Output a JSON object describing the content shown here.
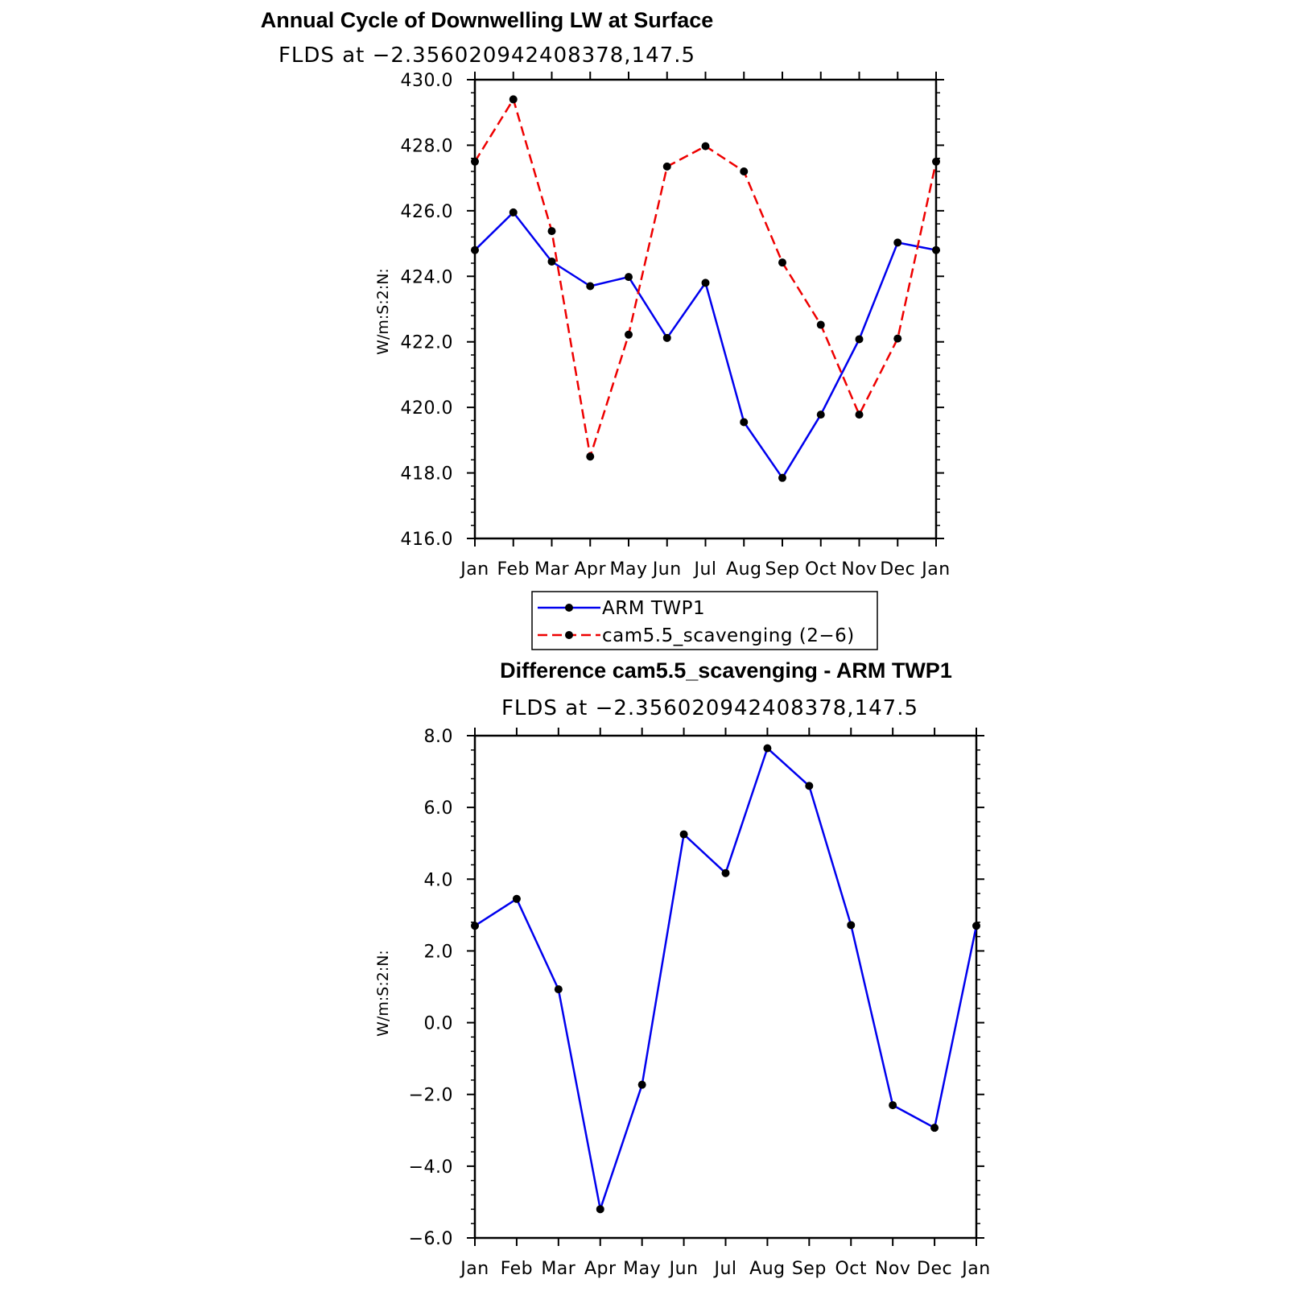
{
  "chart_data": [
    {
      "type": "line",
      "title": "Annual Cycle of Downwelling LW at Surface",
      "subtitle": "FLDS at −2.356020942408378,147.5",
      "xlabel": "",
      "ylabel": "W/m:S:2:N:",
      "categories": [
        "Jan",
        "Feb",
        "Mar",
        "Apr",
        "May",
        "Jun",
        "Jul",
        "Aug",
        "Sep",
        "Oct",
        "Nov",
        "Dec",
        "Jan"
      ],
      "ylim": [
        416.0,
        430.0
      ],
      "yticks": [
        "416.0",
        "418.0",
        "420.0",
        "422.0",
        "424.0",
        "426.0",
        "428.0",
        "430.0"
      ],
      "grid": false,
      "legend_position": "below",
      "series": [
        {
          "name": "ARM TWP1",
          "color": "#0000ee",
          "dash": "solid",
          "values": [
            424.8,
            425.95,
            424.45,
            423.7,
            423.98,
            422.12,
            423.8,
            419.55,
            417.85,
            419.78,
            422.08,
            425.03,
            424.8
          ]
        },
        {
          "name": "cam5.5_scavenging (2−6)",
          "color": "#ee0000",
          "dash": "dashed",
          "values": [
            427.5,
            429.4,
            425.38,
            418.5,
            422.22,
            427.35,
            427.97,
            427.2,
            424.42,
            422.52,
            419.78,
            422.1,
            427.5
          ]
        }
      ]
    },
    {
      "type": "line",
      "title": "Difference cam5.5_scavenging - ARM TWP1",
      "subtitle": "FLDS at −2.356020942408378,147.5",
      "xlabel": "",
      "ylabel": "W/m:S:2:N:",
      "categories": [
        "Jan",
        "Feb",
        "Mar",
        "Apr",
        "May",
        "Jun",
        "Jul",
        "Aug",
        "Sep",
        "Oct",
        "Nov",
        "Dec",
        "Jan"
      ],
      "ylim": [
        -6.0,
        8.0
      ],
      "yticks": [
        "−6.0",
        "−4.0",
        "−2.0",
        "0.0",
        "2.0",
        "4.0",
        "6.0",
        "8.0"
      ],
      "grid": false,
      "series": [
        {
          "color": "#0000ee",
          "dash": "solid",
          "values": [
            2.7,
            3.45,
            0.93,
            -5.2,
            -1.73,
            5.25,
            4.17,
            7.65,
            6.6,
            2.72,
            -2.3,
            -2.93,
            2.7
          ]
        }
      ]
    }
  ]
}
